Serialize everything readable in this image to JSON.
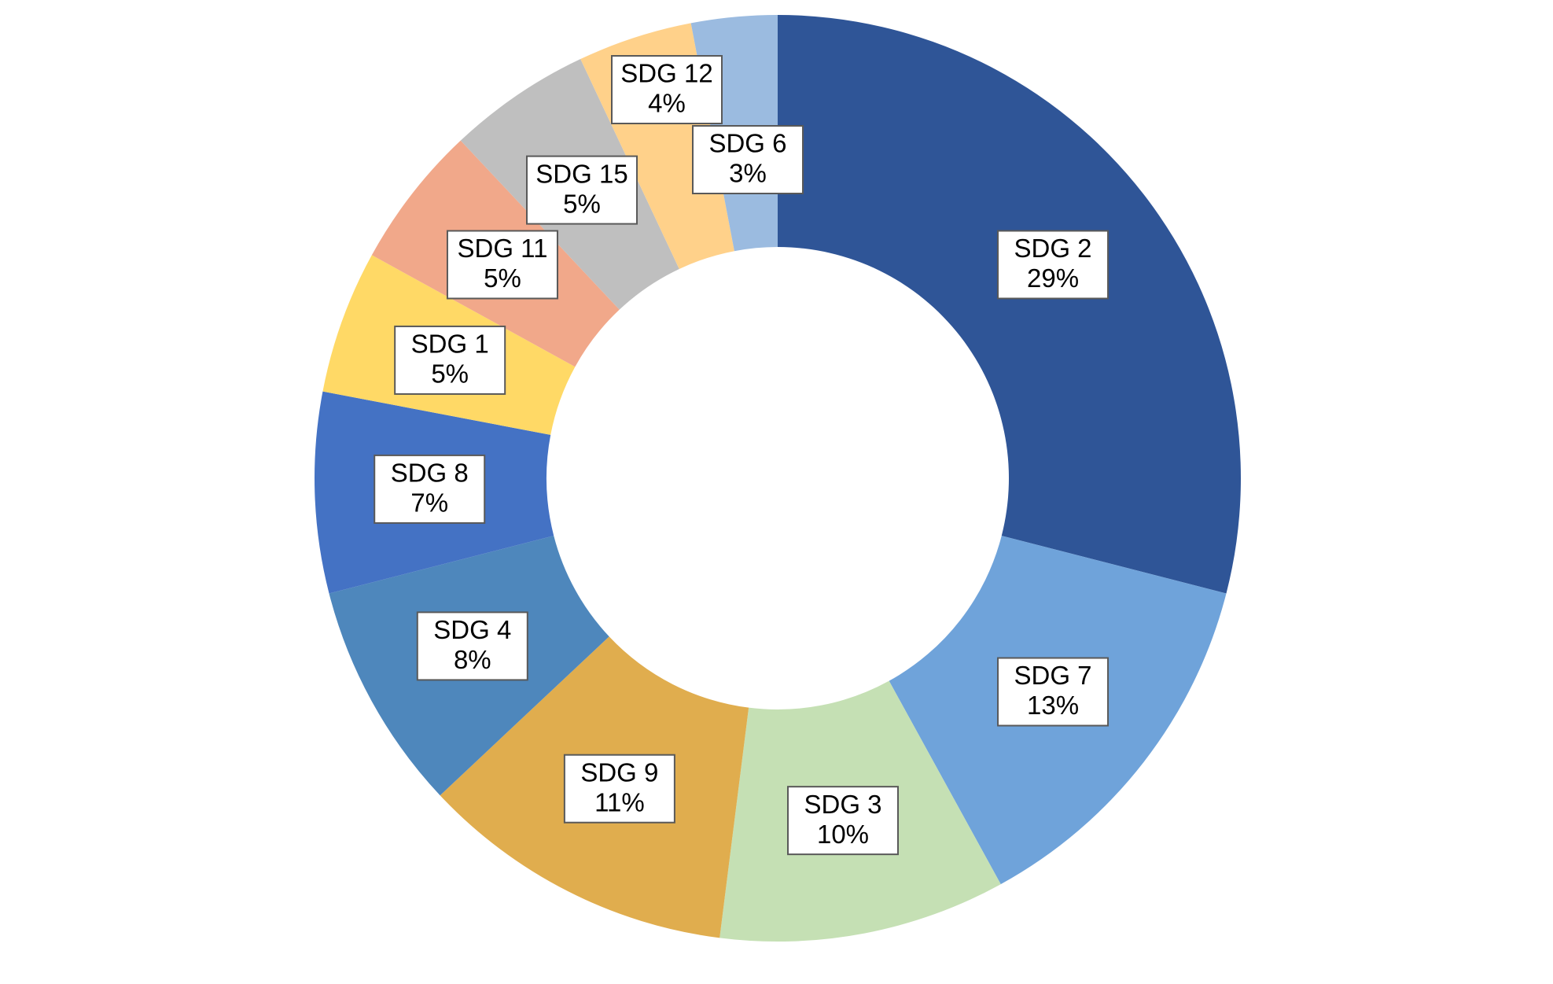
{
  "chart_data": {
    "type": "donut",
    "categories": [
      "SDG 2",
      "SDG 7",
      "SDG 3",
      "SDG 9",
      "SDG 4",
      "SDG 8",
      "SDG 1",
      "SDG 11",
      "SDG 15",
      "SDG 12",
      "SDG 6"
    ],
    "values": [
      29,
      13,
      10,
      11,
      8,
      7,
      5,
      5,
      5,
      4,
      3
    ],
    "value_labels": [
      "29%",
      "13%",
      "10%",
      "11%",
      "8%",
      "7%",
      "5%",
      "5%",
      "5%",
      "4%",
      "3%"
    ],
    "colors": [
      "#2f5597",
      "#6fa3da",
      "#c5e0b4",
      "#e0ad4e",
      "#4e87bc",
      "#4472c4",
      "#ffd966",
      "#f1a88a",
      "#bfbfbf",
      "#ffd18a",
      "#9bbbe0"
    ]
  }
}
